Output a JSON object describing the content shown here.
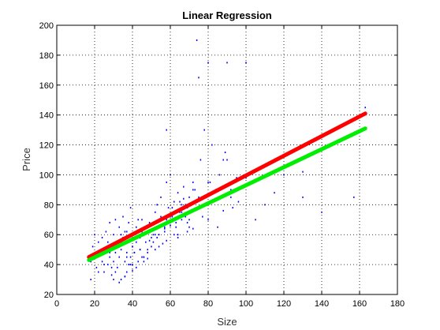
{
  "chart_data": {
    "type": "scatter",
    "title": "Linear Regression",
    "xlabel": "Size",
    "ylabel": "Price",
    "xlim": [
      0,
      180
    ],
    "ylim": [
      20,
      200
    ],
    "xticks": [
      0,
      20,
      40,
      60,
      80,
      100,
      120,
      140,
      160,
      180
    ],
    "yticks": [
      20,
      40,
      60,
      80,
      100,
      120,
      140,
      160,
      180,
      200
    ],
    "grid": true,
    "scatter": {
      "color": "#0000ff",
      "x": [
        18,
        19,
        20,
        20,
        21,
        22,
        23,
        24,
        24,
        25,
        25,
        26,
        27,
        27,
        28,
        28,
        29,
        29,
        30,
        30,
        31,
        31,
        32,
        32,
        33,
        33,
        34,
        34,
        35,
        35,
        36,
        36,
        37,
        37,
        38,
        38,
        39,
        39,
        40,
        40,
        41,
        41,
        42,
        42,
        43,
        43,
        44,
        44,
        45,
        46,
        47,
        48,
        49,
        50,
        51,
        52,
        53,
        54,
        55,
        56,
        57,
        58,
        58,
        59,
        60,
        60,
        61,
        62,
        63,
        64,
        65,
        66,
        67,
        68,
        69,
        70,
        72,
        74,
        75,
        76,
        78,
        80,
        82,
        84,
        86,
        88,
        90,
        92,
        95,
        100,
        105,
        110,
        115,
        120,
        130,
        140,
        157,
        163,
        18,
        22,
        26,
        30,
        34,
        38,
        42,
        46,
        50,
        54,
        58,
        62,
        66,
        70,
        33,
        36,
        39,
        42,
        45,
        48,
        51,
        54,
        57,
        60,
        63,
        66,
        69,
        72,
        75,
        28,
        31,
        34,
        37,
        40,
        43,
        46,
        49,
        52,
        55,
        58,
        61,
        64,
        67,
        70,
        25,
        29,
        33,
        37,
        41,
        45,
        49,
        53,
        57,
        61,
        65,
        69,
        73,
        77,
        81,
        85,
        89,
        93,
        36,
        40,
        44,
        48,
        52,
        56,
        60,
        64,
        68,
        72,
        76,
        80,
        84,
        88,
        92,
        96,
        130,
        80,
        90,
        100
      ],
      "y": [
        30,
        52,
        45,
        60,
        38,
        55,
        48,
        42,
        58,
        35,
        50,
        62,
        40,
        55,
        45,
        68,
        33,
        52,
        60,
        42,
        48,
        70,
        38,
        55,
        65,
        45,
        50,
        30,
        58,
        72,
        42,
        62,
        48,
        35,
        55,
        68,
        45,
        78,
        52,
        40,
        60,
        48,
        65,
        55,
        42,
        70,
        50,
        58,
        62,
        45,
        55,
        48,
        68,
        52,
        60,
        75,
        58,
        65,
        85,
        70,
        62,
        95,
        130,
        78,
        68,
        100,
        72,
        82,
        65,
        88,
        75,
        70,
        92,
        80,
        78,
        85,
        95,
        190,
        165,
        110,
        130,
        95,
        120,
        90,
        100,
        110,
        175,
        85,
        98,
        175,
        70,
        80,
        88,
        100,
        85,
        75,
        85,
        145,
        42,
        35,
        48,
        30,
        55,
        40,
        62,
        45,
        58,
        52,
        70,
        60,
        75,
        65,
        28,
        32,
        40,
        38,
        45,
        50,
        55,
        60,
        65,
        72,
        68,
        80,
        62,
        90,
        85,
        48,
        35,
        60,
        45,
        52,
        58,
        42,
        66,
        50,
        72,
        56,
        78,
        60,
        84,
        70,
        40,
        38,
        55,
        62,
        48,
        70,
        56,
        80,
        64,
        74,
        82,
        68,
        90,
        72,
        95,
        65,
        115,
        78,
        32,
        36,
        50,
        44,
        60,
        54,
        66,
        58,
        72,
        64,
        78,
        70,
        84,
        76,
        90,
        82,
        102,
        175,
        110,
        98
      ]
    },
    "series": [
      {
        "color": "#ff0000",
        "x": [
          17,
          163
        ],
        "y": [
          45,
          141
        ]
      },
      {
        "color": "#00ee00",
        "x": [
          17,
          163
        ],
        "y": [
          43,
          131
        ]
      }
    ]
  }
}
